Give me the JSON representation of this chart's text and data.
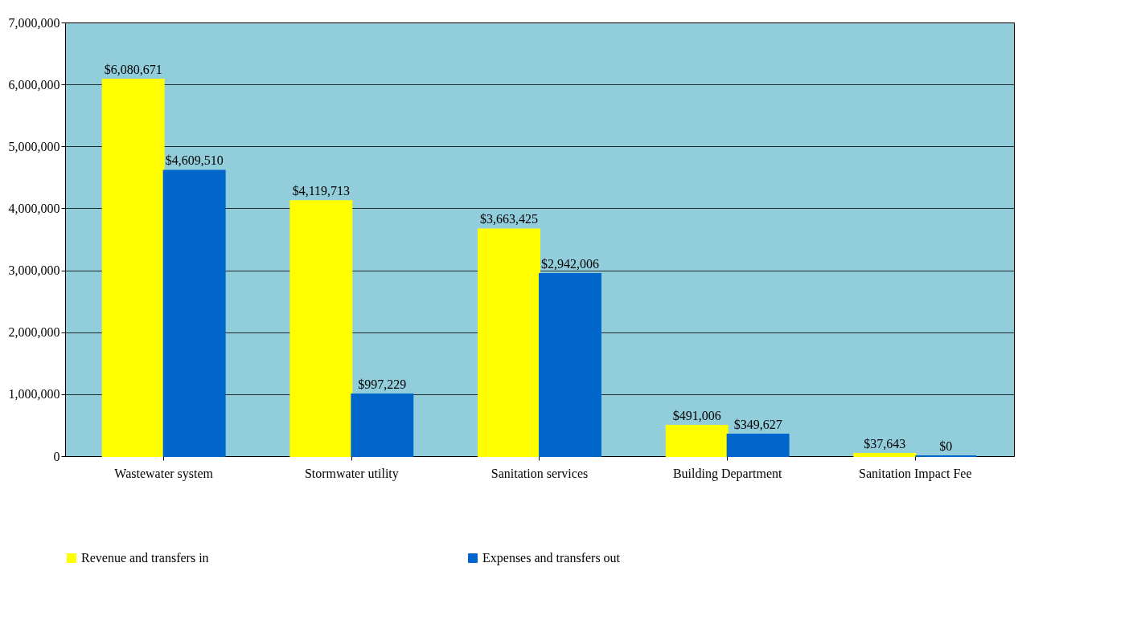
{
  "chart_data": {
    "type": "bar",
    "categories": [
      "Wastewater system",
      "Stormwater utility",
      "Sanitation services",
      "Building Department",
      "Sanitation Impact Fee"
    ],
    "series": [
      {
        "name": "Revenue and transfers in",
        "color": "#ffff00",
        "values": [
          6080671,
          4119713,
          3663425,
          491006,
          37643
        ],
        "value_labels": [
          "$6,080,671",
          "$4,119,713",
          "$3,663,425",
          "$491,006",
          "$37,643"
        ]
      },
      {
        "name": "Expenses and transfers out",
        "color": "#0066cc",
        "values": [
          4609510,
          997229,
          2942006,
          349627,
          0
        ],
        "value_labels": [
          "$4,609,510",
          "$997,229",
          "$2,942,006",
          "$349,627",
          "$0"
        ]
      }
    ],
    "ylim": [
      0,
      7000000
    ],
    "yticks": [
      {
        "value": 0,
        "label": "0"
      },
      {
        "value": 1000000,
        "label": "1,000,000"
      },
      {
        "value": 2000000,
        "label": "2,000,000"
      },
      {
        "value": 3000000,
        "label": "3,000,000"
      },
      {
        "value": 4000000,
        "label": "4,000,000"
      },
      {
        "value": 5000000,
        "label": "5,000,000"
      },
      {
        "value": 6000000,
        "label": "6,000,000"
      },
      {
        "value": 7000000,
        "label": "7,000,000"
      }
    ],
    "grid": "y",
    "legend": "bottom"
  }
}
